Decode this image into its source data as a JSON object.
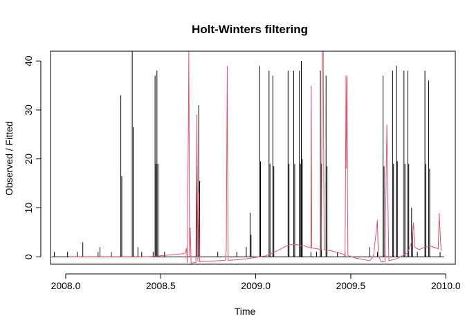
{
  "chart_data": {
    "type": "line",
    "title": "Holt-Winters filtering",
    "xlabel": "Time",
    "ylabel": "Observed / Fitted",
    "xlim": [
      2007.92,
      2010.05
    ],
    "ylim": [
      -1.5,
      42
    ],
    "x_ticks": [
      2008.0,
      2008.5,
      2009.0,
      2009.5,
      2010.0
    ],
    "x_tick_labels": [
      "2008.0",
      "2008.5",
      "2009.0",
      "2009.5",
      "2010.0"
    ],
    "y_ticks": [
      0,
      10,
      20,
      30,
      40
    ],
    "y_tick_labels": [
      "0",
      "10",
      "20",
      "30",
      "40"
    ],
    "grid": false,
    "series": [
      {
        "color": "#000000",
        "baseline": 0,
        "spikes": [
          [
            2007.94,
            1.0
          ],
          [
            2008.01,
            1.0
          ],
          [
            2008.06,
            1.0
          ],
          [
            2008.09,
            3.0
          ],
          [
            2008.17,
            1.0
          ],
          [
            2008.18,
            2.0
          ],
          [
            2008.24,
            1.0
          ],
          [
            2008.29,
            33.0
          ],
          [
            2008.295,
            16.5
          ],
          [
            2008.35,
            42.0
          ],
          [
            2008.355,
            26.5
          ],
          [
            2008.38,
            2.0
          ],
          [
            2008.4,
            1.0
          ],
          [
            2008.46,
            1.0
          ],
          [
            2008.47,
            37.0
          ],
          [
            2008.475,
            19.0
          ],
          [
            2008.48,
            38.0
          ],
          [
            2008.485,
            19.0
          ],
          [
            2008.52,
            1.0
          ],
          [
            2008.69,
            29.0
          ],
          [
            2008.7,
            31.0
          ],
          [
            2008.705,
            15.5
          ],
          [
            2008.8,
            1.0
          ],
          [
            2008.9,
            1.0
          ],
          [
            2008.95,
            2.0
          ],
          [
            2008.97,
            9.0
          ],
          [
            2008.975,
            4.5
          ],
          [
            2009.02,
            39.0
          ],
          [
            2009.025,
            19.5
          ],
          [
            2009.07,
            38.0
          ],
          [
            2009.075,
            19.0
          ],
          [
            2009.09,
            37.0
          ],
          [
            2009.095,
            18.5
          ],
          [
            2009.17,
            38.0
          ],
          [
            2009.175,
            19.0
          ],
          [
            2009.2,
            38.0
          ],
          [
            2009.205,
            19.0
          ],
          [
            2009.23,
            38.0
          ],
          [
            2009.235,
            19.0
          ],
          [
            2009.24,
            40.0
          ],
          [
            2009.245,
            20.0
          ],
          [
            2009.29,
            1.0
          ],
          [
            2009.32,
            1.0
          ],
          [
            2009.34,
            38.0
          ],
          [
            2009.345,
            19.0
          ],
          [
            2009.37,
            37.0
          ],
          [
            2009.375,
            18.5
          ],
          [
            2009.43,
            1.0
          ],
          [
            2009.47,
            1.0
          ],
          [
            2009.6,
            2.0
          ],
          [
            2009.64,
            1.0
          ],
          [
            2009.67,
            37.0
          ],
          [
            2009.675,
            18.5
          ],
          [
            2009.72,
            38.0
          ],
          [
            2009.725,
            19.0
          ],
          [
            2009.74,
            39.0
          ],
          [
            2009.745,
            19.5
          ],
          [
            2009.78,
            38.0
          ],
          [
            2009.785,
            19.0
          ],
          [
            2009.8,
            38.0
          ],
          [
            2009.805,
            19.0
          ],
          [
            2009.82,
            10.0
          ],
          [
            2009.825,
            5.0
          ],
          [
            2009.85,
            1.0
          ],
          [
            2009.89,
            38.0
          ],
          [
            2009.895,
            19.0
          ],
          [
            2009.91,
            36.0
          ],
          [
            2009.915,
            18.0
          ],
          [
            2009.97,
            1.0
          ]
        ]
      },
      {
        "color": "#df536b",
        "points": [
          [
            2008.02,
            0.0
          ],
          [
            2008.44,
            0.0
          ],
          [
            2008.49,
            0.2
          ],
          [
            2008.52,
            0.3
          ],
          [
            2008.55,
            0.4
          ],
          [
            2008.58,
            0.5
          ],
          [
            2008.61,
            0.6
          ],
          [
            2008.63,
            0.8
          ],
          [
            2008.635,
            1.8
          ],
          [
            2008.64,
            -1.2
          ],
          [
            2008.645,
            25.0
          ],
          [
            2008.648,
            42.0
          ],
          [
            2008.652,
            0.0
          ],
          [
            2008.655,
            6.0
          ],
          [
            2008.66,
            -1.3
          ],
          [
            2008.67,
            -1.2
          ],
          [
            2008.685,
            -1.1
          ],
          [
            2008.69,
            29.0
          ],
          [
            2008.695,
            -1.0
          ],
          [
            2008.7,
            13.0
          ],
          [
            2008.705,
            -1.0
          ],
          [
            2008.72,
            -0.9
          ],
          [
            2008.76,
            -0.9
          ],
          [
            2008.8,
            -0.8
          ],
          [
            2008.84,
            -0.7
          ],
          [
            2008.845,
            1.5
          ],
          [
            2008.85,
            39.0
          ],
          [
            2008.852,
            19.0
          ],
          [
            2008.855,
            -0.7
          ],
          [
            2008.9,
            -0.6
          ],
          [
            2008.95,
            -0.4
          ],
          [
            2009.0,
            -0.1
          ],
          [
            2009.05,
            0.2
          ],
          [
            2009.08,
            0.6
          ],
          [
            2009.1,
            1.0
          ],
          [
            2009.13,
            1.6
          ],
          [
            2009.16,
            2.2
          ],
          [
            2009.18,
            2.5
          ],
          [
            2009.22,
            2.5
          ],
          [
            2009.26,
            2.2
          ],
          [
            2009.29,
            1.8
          ],
          [
            2009.292,
            35.0
          ],
          [
            2009.295,
            1.8
          ],
          [
            2009.33,
            1.6
          ],
          [
            2009.345,
            1.5
          ],
          [
            2009.35,
            42.0
          ],
          [
            2009.355,
            42.0
          ],
          [
            2009.36,
            1.5
          ],
          [
            2009.4,
            1.2
          ],
          [
            2009.44,
            0.8
          ],
          [
            2009.47,
            0.4
          ],
          [
            2009.475,
            37.0
          ],
          [
            2009.478,
            18.0
          ],
          [
            2009.48,
            37.0
          ],
          [
            2009.482,
            18.5
          ],
          [
            2009.485,
            0.3
          ],
          [
            2009.52,
            -0.2
          ],
          [
            2009.56,
            -0.5
          ],
          [
            2009.6,
            -0.8
          ],
          [
            2009.62,
            0.2
          ],
          [
            2009.64,
            7.5
          ],
          [
            2009.645,
            0.3
          ],
          [
            2009.66,
            -1.0
          ],
          [
            2009.68,
            -1.0
          ],
          [
            2009.69,
            27.0
          ],
          [
            2009.695,
            12.0
          ],
          [
            2009.7,
            -0.8
          ],
          [
            2009.72,
            -0.6
          ],
          [
            2009.74,
            -0.4
          ],
          [
            2009.76,
            0.0
          ],
          [
            2009.78,
            0.4
          ],
          [
            2009.8,
            0.8
          ],
          [
            2009.82,
            3.0
          ],
          [
            2009.83,
            7.0
          ],
          [
            2009.835,
            2.0
          ],
          [
            2009.86,
            1.5
          ],
          [
            2009.89,
            2.0
          ],
          [
            2009.92,
            2.2
          ],
          [
            2009.95,
            1.8
          ],
          [
            2009.96,
            1.6
          ],
          [
            2009.965,
            9.0
          ],
          [
            2009.97,
            5.0
          ],
          [
            2009.975,
            1.5
          ],
          [
            2009.98,
            1.3
          ]
        ]
      }
    ]
  }
}
